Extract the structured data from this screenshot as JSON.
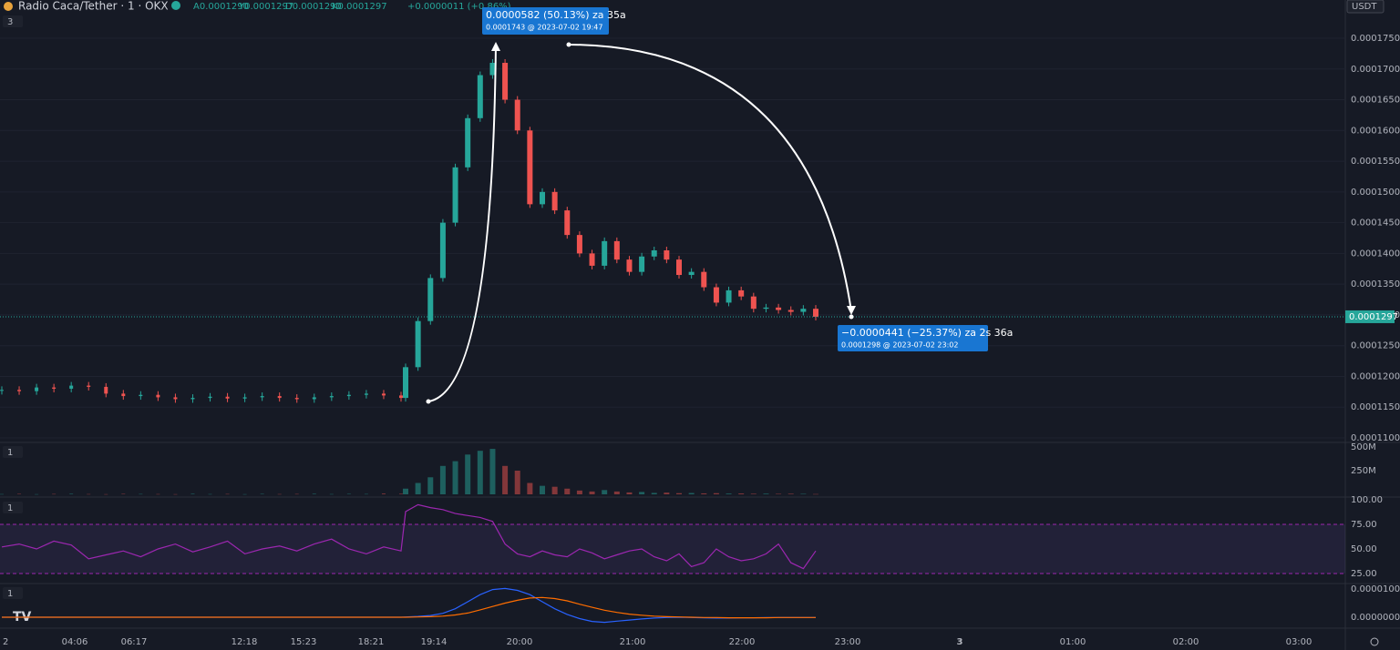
{
  "header": {
    "symbol": "Radio Caca/Tether · 1 · OKX",
    "ohlc": [
      "A0.0001290",
      "Y0.0001297",
      "D0.0001290",
      "K0.0001297"
    ],
    "change": "+0.0000011 (+0.86%)"
  },
  "currency": "USDT",
  "current_price": "0.0001297",
  "pane_labels": [
    "3",
    "1",
    "1",
    "1"
  ],
  "measures": [
    {
      "main": "0.0000582 (50.13%) za 35a",
      "detail": "0.0001743 @ 2023-07-02  19:47"
    },
    {
      "main": "−0.0000441 (−25.37%) za 2s 36a",
      "detail": "0.0001298 @ 2023-07-02  23:02"
    }
  ],
  "price": {
    "ticks": [
      {
        "value": 0.000175,
        "label": "0.0001750"
      },
      {
        "value": 0.00017,
        "label": "0.0001700"
      },
      {
        "value": 0.000165,
        "label": "0.0001650"
      },
      {
        "value": 0.00016,
        "label": "0.0001600"
      },
      {
        "value": 0.000155,
        "label": "0.0001550"
      },
      {
        "value": 0.00015,
        "label": "0.0001500"
      },
      {
        "value": 0.000145,
        "label": "0.0001450"
      },
      {
        "value": 0.00014,
        "label": "0.0001400"
      },
      {
        "value": 0.000135,
        "label": "0.0001350"
      },
      {
        "value": 0.00013,
        "label": "0.0001300"
      },
      {
        "value": 0.000125,
        "label": "0.0001250"
      },
      {
        "value": 0.00012,
        "label": "0.0001200"
      },
      {
        "value": 0.000115,
        "label": "0.0001150"
      },
      {
        "value": 0.00011,
        "label": "0.0001100"
      }
    ],
    "closes": [
      0.0001178,
      0.0001176,
      0.0001182,
      0.000118,
      0.0001185,
      0.0001183,
      0.0001172,
      0.0001168,
      0.000117,
      0.0001166,
      0.0001163,
      0.0001165,
      0.0001167,
      0.0001164,
      0.0001166,
      0.0001168,
      0.0001165,
      0.0001163,
      0.0001166,
      0.0001168,
      0.000117,
      0.0001172,
      0.0001169,
      0.0001165,
      0.0001215,
      0.000129,
      0.000136,
      0.000145,
      0.000154,
      0.000162,
      0.000169,
      0.000171,
      0.000165,
      0.00016,
      0.000148,
      0.00015,
      0.000147,
      0.000143,
      0.00014,
      0.000138,
      0.000142,
      0.000139,
      0.000137,
      0.0001395,
      0.0001405,
      0.000139,
      0.0001365,
      0.000137,
      0.0001345,
      0.000132,
      0.000134,
      0.000133,
      0.000131,
      0.0001312,
      0.0001308,
      0.0001305,
      0.000131,
      0.0001297
    ]
  },
  "volume": {
    "ticks": [
      {
        "value": 500000000,
        "label": "500M"
      },
      {
        "value": 250000000,
        "label": "250M"
      }
    ],
    "values": [
      3000000,
      5000000,
      2000000,
      4000000,
      6000000,
      3000000,
      2000000,
      5000000,
      4000000,
      3000000,
      2000000,
      6000000,
      3000000,
      4000000,
      2000000,
      5000000,
      3000000,
      4000000,
      6000000,
      3000000,
      5000000,
      4000000,
      8000000,
      6000000,
      60000000,
      120000000,
      180000000,
      300000000,
      350000000,
      420000000,
      460000000,
      480000000,
      300000000,
      250000000,
      120000000,
      90000000,
      80000000,
      60000000,
      40000000,
      30000000,
      45000000,
      30000000,
      20000000,
      25000000,
      15000000,
      18000000,
      12000000,
      14000000,
      10000000,
      12000000,
      8000000,
      9000000,
      6000000,
      7000000,
      5000000,
      6000000,
      5000000,
      3000000
    ]
  },
  "rsi": {
    "ticks": [
      {
        "value": 100,
        "label": "100.00"
      },
      {
        "value": 75,
        "label": "75.00"
      },
      {
        "value": 50,
        "label": "50.00"
      },
      {
        "value": 25,
        "label": "25.00"
      }
    ],
    "values": [
      52,
      55,
      50,
      58,
      54,
      40,
      44,
      48,
      42,
      50,
      55,
      47,
      52,
      58,
      45,
      50,
      53,
      48,
      55,
      60,
      50,
      45,
      52,
      48,
      88,
      95,
      92,
      90,
      86,
      84,
      82,
      78,
      55,
      45,
      42,
      48,
      44,
      42,
      50,
      46,
      40,
      44,
      48,
      50,
      42,
      38,
      45,
      32,
      36,
      50,
      42,
      38,
      40,
      45,
      55,
      36,
      30,
      48
    ]
  },
  "macd": {
    "ticks": [
      {
        "value": 1e-05,
        "label": "0.0000100"
      },
      {
        "value": 0,
        "label": "0.0000000"
      }
    ],
    "macd": [
      0,
      0,
      0,
      0,
      0,
      0,
      0,
      0,
      0,
      0,
      0,
      0,
      0,
      0,
      0,
      0,
      0,
      0,
      0,
      0,
      0,
      0,
      0,
      0,
      1e-07,
      3e-07,
      6e-07,
      1.4e-06,
      3e-06,
      5.5e-06,
      8e-06,
      9.8e-06,
      1.02e-05,
      9.5e-06,
      8e-06,
      5.5e-06,
      3e-06,
      1e-06,
      -5e-07,
      -1.5e-06,
      -1.8e-06,
      -1.4e-06,
      -1e-06,
      -6e-07,
      -3e-07,
      -1e-07,
      0,
      -1e-07,
      -2e-07,
      -3e-07,
      -3e-07,
      -2e-07,
      -2e-07,
      -1e-07,
      -1e-07,
      -1e-07,
      -1e-07,
      -1e-07
    ],
    "signal": [
      0,
      0,
      0,
      0,
      0,
      0,
      0,
      0,
      0,
      0,
      0,
      0,
      0,
      0,
      0,
      0,
      0,
      0,
      0,
      0,
      0,
      0,
      0,
      0,
      0,
      1e-07,
      2e-07,
      4e-07,
      8e-07,
      1.5e-06,
      2.6e-06,
      3.8e-06,
      5e-06,
      6e-06,
      6.8e-06,
      7e-06,
      6.6e-06,
      5.8e-06,
      4.6e-06,
      3.5e-06,
      2.5e-06,
      1.7e-06,
      1.1e-06,
      7e-07,
      4e-07,
      2e-07,
      1e-07,
      0,
      -1e-07,
      -1e-07,
      -2e-07,
      -2e-07,
      -2e-07,
      -2e-07,
      -1e-07,
      -1e-07,
      -1e-07,
      -1e-07
    ]
  },
  "time_labels": [
    "2",
    "04:06",
    "06:17",
    "12:18",
    "15:23",
    "18:21",
    "19:14",
    "20:00",
    "21:00",
    "22:00",
    "23:00",
    "3",
    "01:00",
    "02:00",
    "03:00"
  ]
}
